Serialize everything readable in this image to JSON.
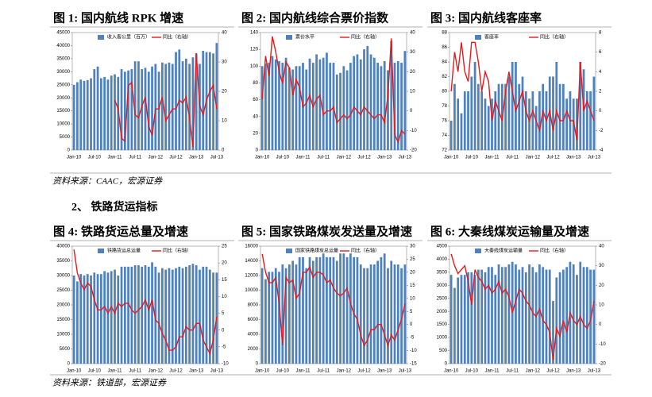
{
  "section_heading": "2、 铁路货运指标",
  "sources": [
    "资料来源：CAAC，宏源证券",
    "资料来源：铁道部，宏源证券"
  ],
  "chart_data": [
    {
      "type": "bar",
      "title": "图 1:  国内航线 RPK 增速",
      "categories": [
        "Jan-10",
        null,
        null,
        null,
        null,
        null,
        "Jul-10",
        null,
        null,
        null,
        null,
        null,
        "Jan-11",
        null,
        null,
        null,
        null,
        null,
        "Jul-11",
        null,
        null,
        null,
        null,
        null,
        "Jan-12",
        null,
        null,
        null,
        null,
        null,
        "Jul-12",
        null,
        null,
        null,
        null,
        null,
        "Jan-13",
        null,
        null,
        null,
        null,
        null,
        "Jul-13"
      ],
      "ylim": [
        0,
        45000
      ],
      "yticks": [
        0,
        5000,
        10000,
        15000,
        20000,
        25000,
        30000,
        35000,
        40000,
        45000
      ],
      "y2lim": [
        0,
        40
      ],
      "y2ticks": [
        0,
        10,
        20,
        30,
        40
      ],
      "series": [
        {
          "name": "收入客公里（百万）",
          "color": "#4f81bd",
          "values": [
            25000,
            26000,
            27000,
            26500,
            26800,
            27500,
            31000,
            32000,
            27500,
            28000,
            27000,
            28500,
            29000,
            28000,
            31000,
            30000,
            30500,
            31000,
            34000,
            34000,
            31000,
            31500,
            30000,
            32000,
            33000,
            30000,
            33500,
            33000,
            33500,
            33000,
            37500,
            38500,
            34000,
            35000,
            33000,
            35500,
            37000,
            33000,
            38000,
            37500,
            37500,
            37000,
            41000
          ]
        },
        {
          "name": "同比（右轴）",
          "color": "#e41a1c",
          "axis": "y2",
          "values": [
            null,
            null,
            null,
            null,
            null,
            null,
            null,
            null,
            null,
            null,
            null,
            null,
            17,
            14,
            4,
            3,
            22,
            23,
            12,
            11,
            15,
            18,
            8,
            5,
            14,
            14,
            18,
            10,
            12,
            14,
            14,
            17,
            16,
            18,
            11,
            1,
            33,
            15,
            12,
            17,
            20,
            22,
            14
          ]
        }
      ]
    },
    {
      "type": "bar",
      "title": "图 2:  国内航线综合票价指数",
      "categories": [
        "Jan-10",
        null,
        null,
        null,
        null,
        null,
        "Jul-10",
        null,
        null,
        null,
        null,
        null,
        "Jan-11",
        null,
        null,
        null,
        null,
        null,
        "Jul-11",
        null,
        null,
        null,
        null,
        null,
        "Jan-12",
        null,
        null,
        null,
        null,
        null,
        "Jul-12",
        null,
        null,
        null,
        null,
        null,
        "Jan-13",
        null,
        null,
        null,
        null,
        null,
        "Jul-13"
      ],
      "ylim": [
        0,
        140
      ],
      "yticks": [
        0,
        20,
        40,
        60,
        80,
        100,
        120,
        140
      ],
      "y2lim": [
        -20,
        40
      ],
      "y2ticks": [
        -20,
        -10,
        0,
        10,
        20,
        30,
        40
      ],
      "series": [
        {
          "name": "票价水平",
          "color": "#4f81bd",
          "values": [
            100,
            103,
            104,
            112,
            108,
            106,
            104,
            110,
            98,
            96,
            100,
            100,
            104,
            96,
            109,
            104,
            114,
            108,
            110,
            116,
            104,
            104,
            90,
            92,
            100,
            95,
            104,
            112,
            114,
            108,
            120,
            124,
            114,
            110,
            104,
            100,
            106,
            95,
            130,
            104,
            106,
            104,
            118
          ]
        },
        {
          "name": "同比（右轴）",
          "color": "#e41a1c",
          "axis": "y2",
          "values": [
            6,
            28,
            18,
            38,
            30,
            20,
            14,
            25,
            22,
            8,
            16,
            12,
            2,
            4,
            8,
            2,
            6,
            8,
            -2,
            0,
            0,
            2,
            -6,
            -4,
            -2,
            -4,
            -2,
            2,
            0,
            -2,
            2,
            0,
            -2,
            -4,
            -2,
            -2,
            -6,
            8,
            37,
            -12,
            -16,
            -10,
            -12
          ]
        }
      ]
    },
    {
      "type": "bar",
      "title": "图 3:  国内航线客座率",
      "categories": [
        "Jan-10",
        null,
        null,
        null,
        null,
        null,
        "Jul-10",
        null,
        null,
        null,
        null,
        null,
        "Jan-11",
        null,
        null,
        null,
        null,
        null,
        "Jul-11",
        null,
        null,
        null,
        null,
        null,
        "Jan-12",
        null,
        null,
        null,
        null,
        null,
        "Jul-12",
        null,
        null,
        null,
        null,
        null,
        "Jan-13",
        null,
        null,
        null,
        null,
        null,
        "Jul-13"
      ],
      "ylim": [
        72,
        88
      ],
      "yticks": [
        72,
        74,
        76,
        78,
        80,
        82,
        84,
        86,
        88
      ],
      "y2lim": [
        -4,
        8
      ],
      "y2ticks": [
        -4,
        -2,
        0,
        2,
        4,
        6,
        8
      ],
      "series": [
        {
          "name": "客座率",
          "color": "#4f81bd",
          "values": [
            76,
            81,
            79,
            77,
            80,
            80,
            82,
            84,
            81,
            80,
            79,
            78,
            79,
            80,
            81,
            81,
            81,
            82,
            84,
            84,
            81,
            82,
            80,
            79,
            80,
            78,
            80,
            81,
            80,
            82,
            82,
            84,
            81,
            81,
            79,
            80,
            79,
            79,
            84,
            83,
            80,
            80,
            82
          ]
        },
        {
          "name": "同比（右轴）",
          "color": "#e41a1c",
          "axis": "y2",
          "values": [
            2,
            6,
            4,
            7,
            4,
            3,
            7,
            7,
            5,
            2,
            4,
            3,
            -1,
            1,
            0,
            -1,
            2,
            4,
            2,
            0,
            1,
            2,
            0,
            -1,
            0,
            -1,
            -2,
            0,
            -1,
            0,
            -2,
            0,
            -1,
            -1,
            0,
            -1,
            -1,
            -3,
            5,
            0,
            1,
            0,
            -1
          ]
        }
      ]
    },
    {
      "type": "bar",
      "title": "图 4:  铁路货运总量及增速",
      "categories": [
        "Jan-10",
        null,
        null,
        null,
        null,
        null,
        "Jul-10",
        null,
        null,
        null,
        null,
        null,
        "Jan-11",
        null,
        null,
        null,
        null,
        null,
        "Jul-11",
        null,
        null,
        null,
        null,
        null,
        "Jan-12",
        null,
        null,
        null,
        null,
        null,
        "Jul-12",
        null,
        null,
        null,
        null,
        null,
        "Jan-13",
        null,
        null,
        null,
        null,
        null,
        "Jul-13"
      ],
      "ylim": [
        0,
        40000
      ],
      "yticks": [
        0,
        5000,
        10000,
        15000,
        20000,
        25000,
        30000,
        35000,
        40000
      ],
      "y2lim": [
        -10,
        25
      ],
      "y2ticks": [
        -10,
        -5,
        0,
        5,
        10,
        15,
        20,
        25
      ],
      "series": [
        {
          "name": "铁路货运总运量",
          "color": "#4f81bd",
          "values": [
            30000,
            28000,
            30500,
            30000,
            30500,
            30000,
            31000,
            30500,
            30500,
            31500,
            31000,
            31500,
            32000,
            30000,
            33000,
            33000,
            33000,
            33000,
            33500,
            33500,
            33000,
            33500,
            33000,
            34500,
            33000,
            31000,
            32500,
            32000,
            32500,
            32000,
            32500,
            33000,
            32500,
            33000,
            33500,
            34000,
            33500,
            32000,
            33000,
            33000,
            32000,
            31000,
            31000
          ]
        },
        {
          "name": "同比（右轴）",
          "color": "#e41a1c",
          "axis": "y2",
          "values": [
            24,
            17,
            14,
            12,
            14,
            13,
            9,
            6,
            6,
            7,
            5,
            7,
            5,
            8,
            7,
            8,
            8,
            6,
            5,
            6,
            7,
            9,
            6,
            9,
            3,
            2,
            -1,
            -3,
            -6,
            -6,
            -5,
            -2,
            -2,
            1,
            0,
            0,
            2,
            2,
            -3,
            -5,
            -7,
            -3,
            4
          ]
        }
      ]
    },
    {
      "type": "bar",
      "title": "图 5:  国家铁路煤炭发送量及增速",
      "categories": [
        "Jan-10",
        null,
        null,
        null,
        null,
        null,
        "Jul-10",
        null,
        null,
        null,
        null,
        null,
        "Jan-11",
        null,
        null,
        null,
        null,
        null,
        "Jul-11",
        null,
        null,
        null,
        null,
        null,
        "Jan-12",
        null,
        null,
        null,
        null,
        null,
        "Jul-12",
        null,
        null,
        null,
        null,
        null,
        "Jan-13",
        null,
        null,
        null,
        null,
        null,
        "Jul-13"
      ],
      "ylim": [
        0,
        16000
      ],
      "yticks": [
        0,
        2000,
        4000,
        6000,
        8000,
        10000,
        12000,
        14000,
        16000
      ],
      "y2lim": [
        -15,
        30
      ],
      "y2ticks": [
        -15,
        -10,
        -5,
        0,
        5,
        10,
        15,
        20,
        25,
        30
      ],
      "series": [
        {
          "name": "国家铁路煤炭总运量",
          "color": "#4f81bd",
          "values": [
            13000,
            11500,
            12500,
            12500,
            13000,
            12500,
            13500,
            13000,
            13500,
            14000,
            13500,
            14500,
            14500,
            13000,
            14500,
            14000,
            14500,
            14500,
            15000,
            14500,
            14500,
            14500,
            14000,
            15000,
            15000,
            14500,
            15000,
            14500,
            14500,
            13500,
            13000,
            13000,
            13500,
            13500,
            14000,
            14500,
            15000,
            13000,
            14000,
            13500,
            13500,
            13000,
            13500
          ]
        },
        {
          "name": "同比（右轴）",
          "color": "#e41a1c",
          "axis": "y2",
          "values": [
            27,
            20,
            16,
            16,
            18,
            8,
            -8,
            18,
            16,
            17,
            10,
            12,
            20,
            20,
            22,
            18,
            20,
            20,
            19,
            16,
            17,
            14,
            12,
            11,
            12,
            14,
            8,
            4,
            2,
            -4,
            -8,
            -6,
            -2,
            -2,
            0,
            0,
            -4,
            -8,
            -4,
            -6,
            -2,
            2,
            8
          ]
        }
      ]
    },
    {
      "type": "bar",
      "title": "图 6:  大秦线煤炭运输量及增速",
      "categories": [
        "Jan-10",
        null,
        null,
        null,
        null,
        null,
        "Jul-10",
        null,
        null,
        null,
        null,
        null,
        "Jan-11",
        null,
        null,
        null,
        null,
        null,
        "Jul-11",
        null,
        null,
        null,
        null,
        null,
        "Jan-12",
        null,
        null,
        null,
        null,
        null,
        "Jul-12",
        null,
        null,
        null,
        null,
        null,
        "Jan-13",
        null,
        null,
        null,
        null,
        null,
        "Jul-13"
      ],
      "ylim": [
        0,
        4500
      ],
      "yticks": [
        0,
        500,
        1000,
        1500,
        2000,
        2500,
        3000,
        3500,
        4000,
        4500
      ],
      "y2lim": [
        -20,
        40
      ],
      "y2ticks": [
        -20,
        -10,
        0,
        10,
        20,
        30,
        40
      ],
      "series": [
        {
          "name": "大秦线煤炭运输量",
          "color": "#4f81bd",
          "values": [
            3400,
            2900,
            3300,
            3400,
            3400,
            3500,
            3500,
            3400,
            3600,
            3600,
            3500,
            3700,
            3700,
            3400,
            3800,
            3700,
            3700,
            3800,
            3900,
            3800,
            3600,
            3700,
            3500,
            3800,
            3700,
            3500,
            3800,
            3700,
            3600,
            3600,
            2400,
            3300,
            3500,
            3600,
            3700,
            3900,
            3800,
            3400,
            3900,
            3700,
            3700,
            3600,
            3600
          ]
        },
        {
          "name": "同比（右轴）",
          "color": "#e41a1c",
          "axis": "y2",
          "values": [
            36,
            30,
            26,
            28,
            30,
            22,
            10,
            28,
            24,
            22,
            18,
            20,
            16,
            18,
            22,
            16,
            18,
            14,
            6,
            12,
            18,
            16,
            12,
            10,
            6,
            4,
            8,
            2,
            0,
            -4,
            -18,
            -2,
            -6,
            2,
            -4,
            6,
            2,
            0,
            4,
            0,
            -2,
            2,
            12
          ]
        }
      ]
    }
  ]
}
